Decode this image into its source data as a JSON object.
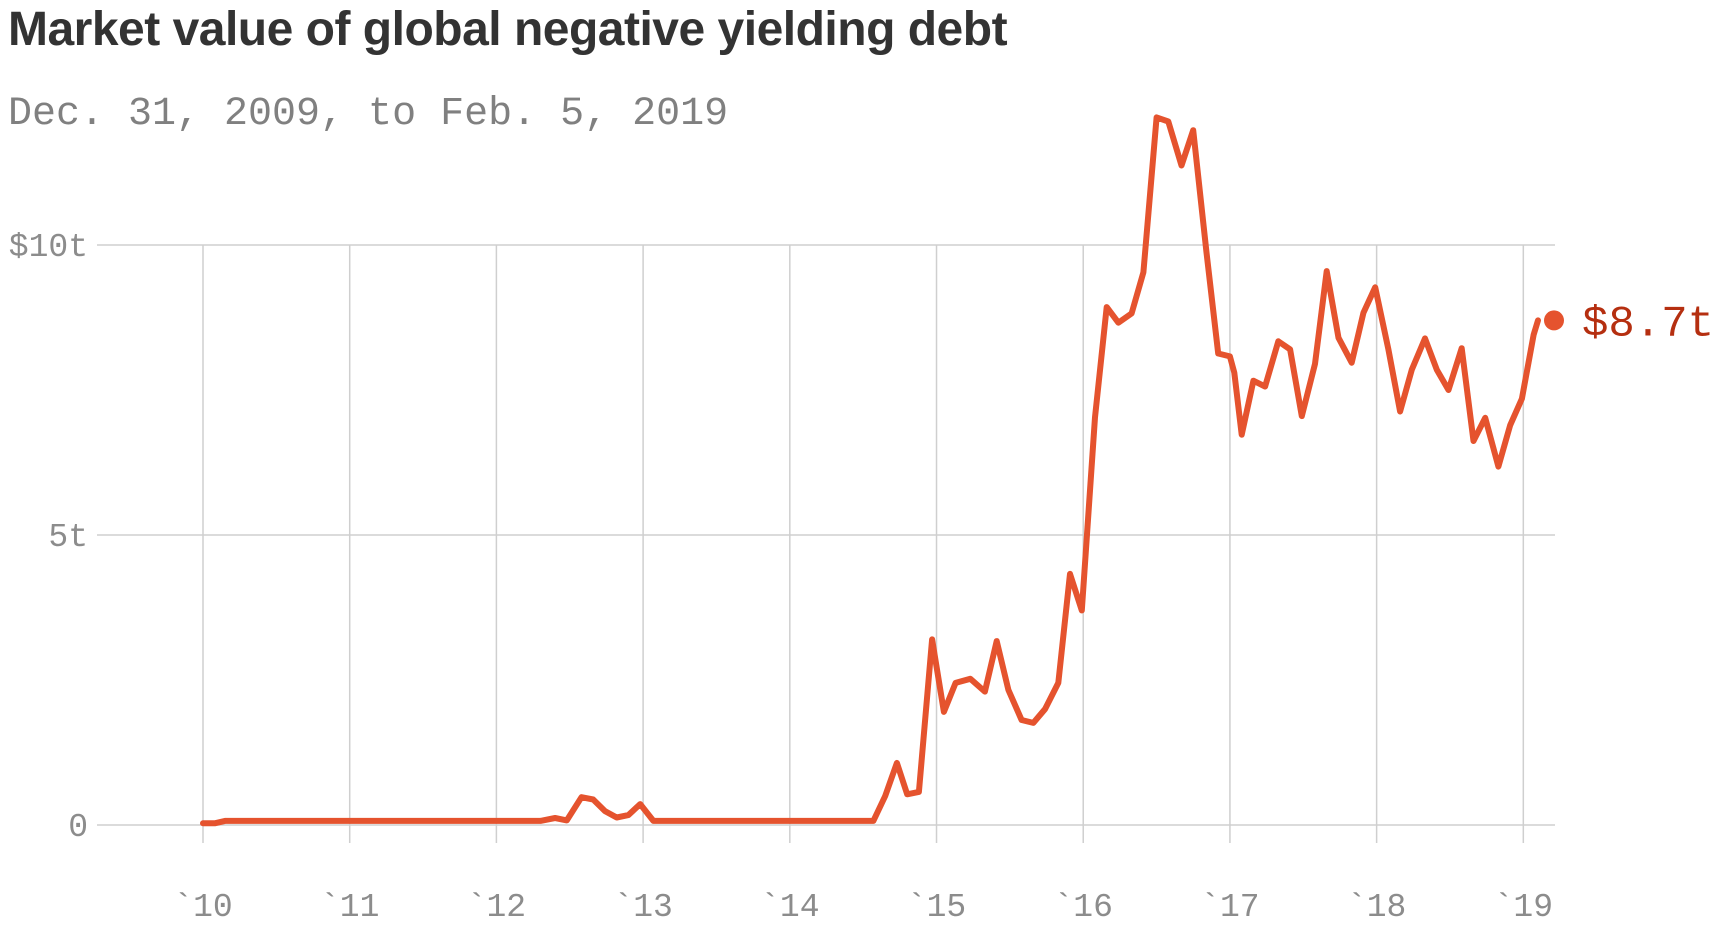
{
  "chart_data": {
    "type": "line",
    "title": "Market value of global negative yielding debt",
    "subtitle": "Dec. 31, 2009, to Feb. 5, 2019",
    "y_ticks": [
      {
        "value": 0,
        "label": "0"
      },
      {
        "value": 5,
        "label": "5t"
      },
      {
        "value": 10,
        "label": "$10t"
      }
    ],
    "x_ticks": [
      {
        "year": 2010,
        "label": "`10"
      },
      {
        "year": 2011,
        "label": "`11"
      },
      {
        "year": 2012,
        "label": "`12"
      },
      {
        "year": 2013,
        "label": "`13"
      },
      {
        "year": 2014,
        "label": "`14"
      },
      {
        "year": 2015,
        "label": "`15"
      },
      {
        "year": 2016,
        "label": "`16"
      },
      {
        "year": 2017,
        "label": "`17"
      },
      {
        "year": 2018,
        "label": "`18"
      },
      {
        "year": 2019,
        "label": "`19"
      }
    ],
    "xlim": [
      2010,
      2019.1
    ],
    "ylim": [
      0,
      10
    ],
    "grid": true,
    "line_color": "#e5532e",
    "end_label": {
      "text": "$8.7t",
      "color": "#b52f10",
      "year": 2019.1,
      "value": 8.7
    },
    "series": [
      {
        "points": [
          [
            2010.0,
            0.03
          ],
          [
            2010.08,
            0.03
          ],
          [
            2010.15,
            0.07
          ],
          [
            2012.3,
            0.07
          ],
          [
            2012.4,
            0.12
          ],
          [
            2012.48,
            0.08
          ],
          [
            2012.58,
            0.48
          ],
          [
            2012.66,
            0.44
          ],
          [
            2012.74,
            0.24
          ],
          [
            2012.82,
            0.13
          ],
          [
            2012.9,
            0.17
          ],
          [
            2012.98,
            0.36
          ],
          [
            2013.07,
            0.07
          ],
          [
            2014.57,
            0.07
          ],
          [
            2014.65,
            0.5
          ],
          [
            2014.73,
            1.07
          ],
          [
            2014.8,
            0.53
          ],
          [
            2014.88,
            0.57
          ],
          [
            2014.97,
            3.2
          ],
          [
            2015.05,
            1.95
          ],
          [
            2015.13,
            2.45
          ],
          [
            2015.23,
            2.52
          ],
          [
            2015.33,
            2.3
          ],
          [
            2015.41,
            3.17
          ],
          [
            2015.49,
            2.33
          ],
          [
            2015.58,
            1.81
          ],
          [
            2015.66,
            1.76
          ],
          [
            2015.74,
            2.0
          ],
          [
            2015.83,
            2.45
          ],
          [
            2015.91,
            4.33
          ],
          [
            2015.99,
            3.7
          ],
          [
            2016.08,
            7.03
          ],
          [
            2016.16,
            8.93
          ],
          [
            2016.24,
            8.66
          ],
          [
            2016.33,
            8.82
          ],
          [
            2016.41,
            9.53
          ],
          [
            2016.5,
            12.2
          ],
          [
            2016.58,
            12.13
          ],
          [
            2016.67,
            11.37
          ],
          [
            2016.75,
            11.98
          ],
          [
            2016.84,
            9.87
          ],
          [
            2016.92,
            8.13
          ],
          [
            2017.0,
            8.08
          ],
          [
            2017.03,
            7.8
          ],
          [
            2017.08,
            6.73
          ],
          [
            2017.16,
            7.66
          ],
          [
            2017.24,
            7.56
          ],
          [
            2017.33,
            8.34
          ],
          [
            2017.41,
            8.2
          ],
          [
            2017.49,
            7.05
          ],
          [
            2017.58,
            7.95
          ],
          [
            2017.66,
            9.55
          ],
          [
            2017.74,
            8.4
          ],
          [
            2017.83,
            7.97
          ],
          [
            2017.91,
            8.83
          ],
          [
            2017.99,
            9.27
          ],
          [
            2018.08,
            8.2
          ],
          [
            2018.16,
            7.13
          ],
          [
            2018.24,
            7.85
          ],
          [
            2018.33,
            8.39
          ],
          [
            2018.41,
            7.85
          ],
          [
            2018.49,
            7.5
          ],
          [
            2018.58,
            8.22
          ],
          [
            2018.66,
            6.62
          ],
          [
            2018.74,
            7.02
          ],
          [
            2018.83,
            6.18
          ],
          [
            2018.91,
            6.89
          ],
          [
            2018.99,
            7.35
          ],
          [
            2019.07,
            8.45
          ],
          [
            2019.1,
            8.7
          ]
        ]
      }
    ]
  }
}
